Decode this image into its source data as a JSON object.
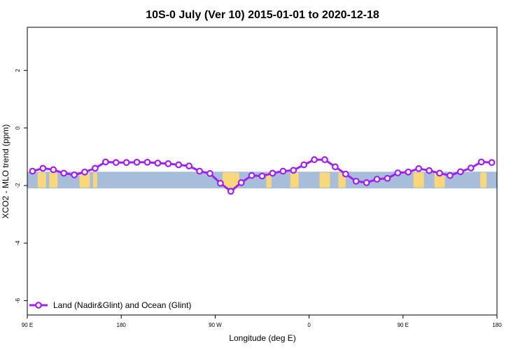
{
  "chart_data": {
    "type": "line",
    "title": "10S-0 July (Ver 10)   2015-01-01 to 2020-12-18",
    "xlabel": "Longitude (deg E)",
    "ylabel": "XCO2 - MLO trend (ppm)",
    "xlim": [
      90,
      540
    ],
    "ylim": [
      -6.5,
      3.5
    ],
    "x_ticks": [
      {
        "value": 90,
        "label": "90 E"
      },
      {
        "value": 180,
        "label": "180"
      },
      {
        "value": 270,
        "label": "90 W"
      },
      {
        "value": 360,
        "label": "0"
      },
      {
        "value": 450,
        "label": "90 E"
      },
      {
        "value": 540,
        "label": "180"
      }
    ],
    "y_ticks": [
      {
        "value": 2,
        "label": "2"
      },
      {
        "value": 0,
        "label": "0"
      },
      {
        "value": -2,
        "label": "-2"
      },
      {
        "value": -4,
        "label": "-4"
      },
      {
        "value": -6,
        "label": "-6"
      }
    ],
    "map_band": {
      "lat_range": "10S-0",
      "y_range": [
        -2.1,
        -1.52
      ],
      "ocean_color": "#a7bedb",
      "land_color": "#f9d77a",
      "land_segments": [
        [
          100,
          108
        ],
        [
          111,
          119
        ],
        [
          140,
          150
        ],
        [
          153,
          157
        ],
        [
          277,
          293
        ],
        [
          319,
          324
        ],
        [
          342,
          350
        ],
        [
          370,
          380
        ],
        [
          388,
          395
        ],
        [
          460,
          470
        ],
        [
          480,
          490
        ],
        [
          524,
          530
        ]
      ]
    },
    "series": [
      {
        "name": "Land (Nadir&Glint) and Ocean (Glint)",
        "color": "#a020f0",
        "x": [
          95,
          105,
          115,
          125,
          135,
          145,
          155,
          165,
          175,
          185,
          195,
          205,
          215,
          225,
          235,
          245,
          255,
          265,
          275,
          285,
          295,
          305,
          315,
          325,
          335,
          345,
          355,
          365,
          375,
          385,
          395,
          405,
          415,
          425,
          435,
          445,
          455,
          465,
          475,
          485,
          495,
          505,
          515,
          525,
          535
        ],
        "y": [
          -1.5,
          -1.4,
          -1.45,
          -1.57,
          -1.63,
          -1.53,
          -1.4,
          -1.18,
          -1.2,
          -1.2,
          -1.19,
          -1.19,
          -1.22,
          -1.24,
          -1.28,
          -1.32,
          -1.5,
          -1.58,
          -1.92,
          -2.2,
          -1.9,
          -1.65,
          -1.67,
          -1.57,
          -1.5,
          -1.47,
          -1.28,
          -1.1,
          -1.1,
          -1.35,
          -1.6,
          -1.85,
          -1.9,
          -1.78,
          -1.75,
          -1.56,
          -1.53,
          -1.41,
          -1.48,
          -1.57,
          -1.65,
          -1.52,
          -1.39,
          -1.18,
          -1.2
        ]
      }
    ],
    "legend_position": "bottom-left",
    "grid": false
  }
}
